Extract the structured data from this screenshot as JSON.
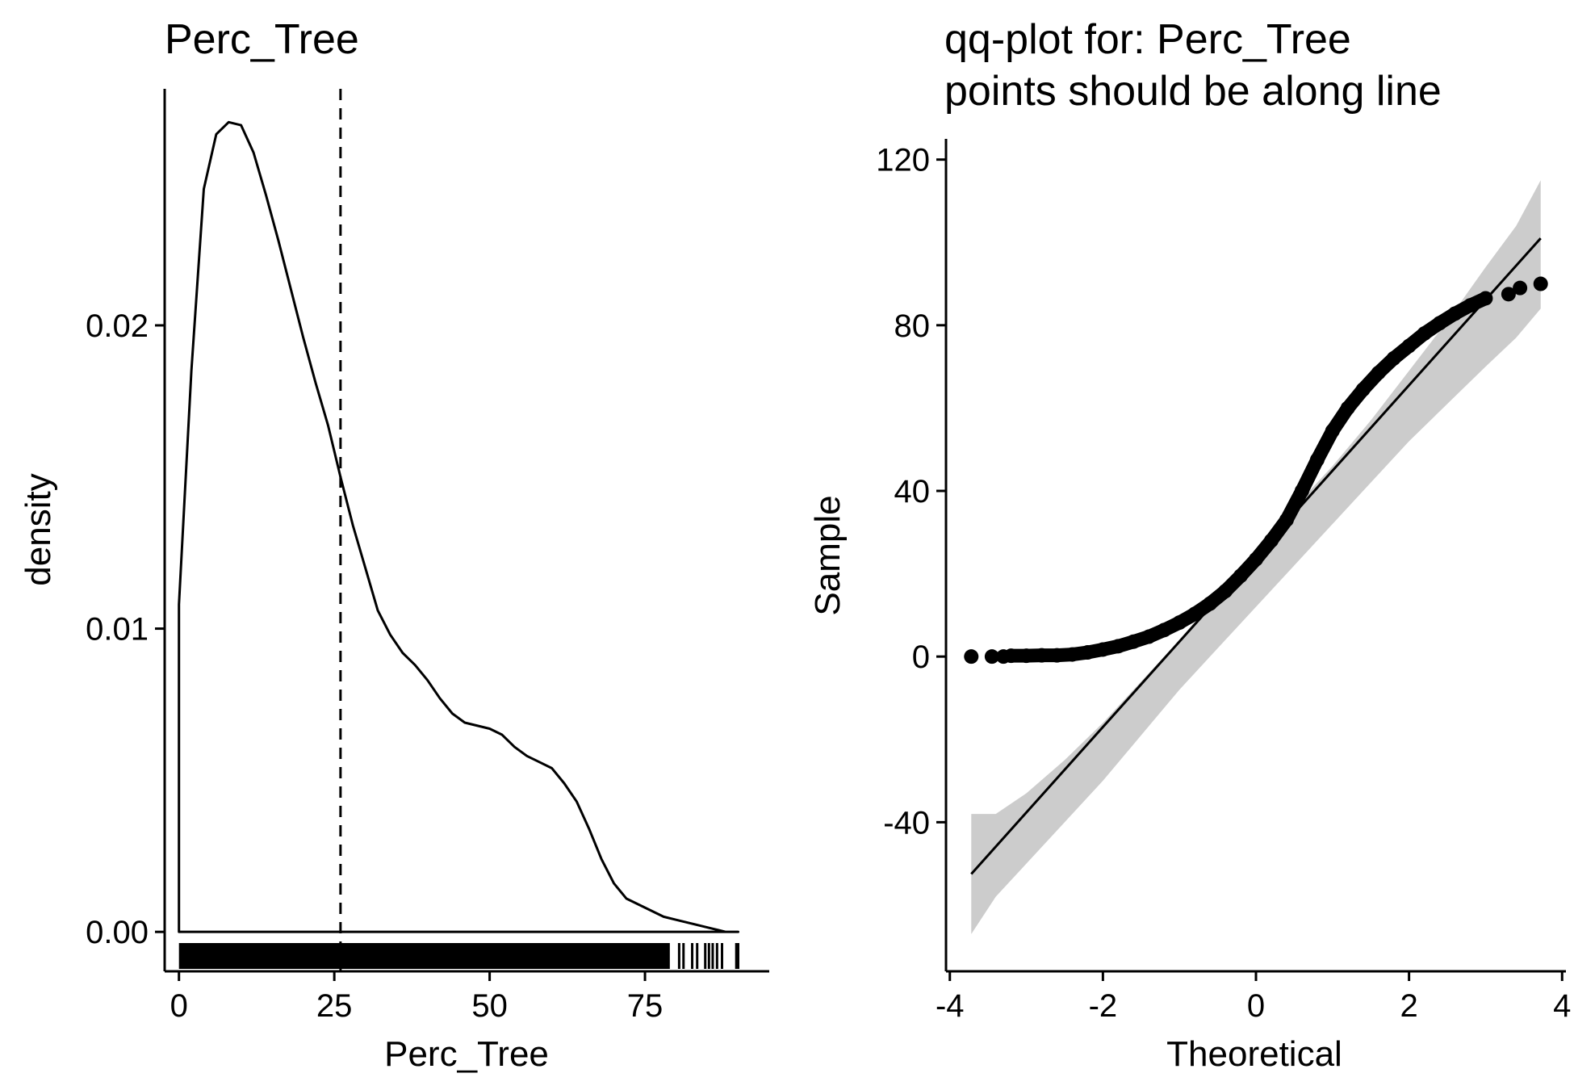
{
  "chart_data": [
    {
      "type": "area",
      "panel": "density",
      "title": "Perc_Tree",
      "xlabel": "Perc_Tree",
      "ylabel": "density",
      "xlim": [
        -2.3,
        95
      ],
      "ylim": [
        -0.0013,
        0.0278
      ],
      "x_ticks": [
        0,
        25,
        50,
        75
      ],
      "x_tick_labels": [
        "0",
        "25",
        "50",
        "75"
      ],
      "y_ticks": [
        0,
        0.01,
        0.02
      ],
      "y_tick_labels": [
        "0.00",
        "0.01",
        "0.02"
      ],
      "grid": false,
      "legend": "none",
      "mean_line_x": 26,
      "density_curve": {
        "x": [
          0,
          2,
          4,
          6,
          8,
          10,
          12,
          14,
          16,
          18,
          20,
          22,
          24,
          26,
          28,
          30,
          32,
          34,
          36,
          38,
          40,
          42,
          44,
          46,
          48,
          50,
          52,
          54,
          56,
          58,
          60,
          62,
          64,
          66,
          68,
          70,
          72,
          74,
          76,
          78,
          80,
          82,
          84,
          86,
          88,
          90
        ],
        "y": [
          0.0108,
          0.0185,
          0.0245,
          0.0263,
          0.0267,
          0.0266,
          0.0257,
          0.0243,
          0.0228,
          0.0212,
          0.0196,
          0.0181,
          0.0167,
          0.015,
          0.0134,
          0.012,
          0.0106,
          0.0098,
          0.0092,
          0.0088,
          0.0083,
          0.0077,
          0.0072,
          0.0069,
          0.0068,
          0.0067,
          0.0065,
          0.0061,
          0.0058,
          0.0056,
          0.0054,
          0.0049,
          0.0043,
          0.0034,
          0.0024,
          0.0016,
          0.0011,
          0.0009,
          0.0007,
          0.0005,
          0.0004,
          0.0003,
          0.0002,
          0.0001,
          0.0,
          0.0
        ]
      },
      "rug": {
        "dense_from": 0,
        "dense_to": 79,
        "sparse": [
          80.5,
          81.2,
          82.6,
          83.4,
          84.7,
          85.3,
          85.9,
          86.6,
          87.4,
          89.7,
          90.0
        ]
      }
    },
    {
      "type": "scatter",
      "panel": "qq",
      "title": "qq-plot for: Perc_Tree",
      "subtitle": "points should be along line",
      "xlabel": "Theoretical",
      "ylabel": "Sample",
      "xlim": [
        -4.05,
        4.05
      ],
      "ylim": [
        -76,
        125
      ],
      "x_ticks": [
        -4,
        -2,
        0,
        2,
        4
      ],
      "x_tick_labels": [
        "-4",
        "-2",
        "0",
        "2",
        "4"
      ],
      "y_ticks": [
        -40,
        0,
        40,
        80,
        120
      ],
      "y_tick_labels": [
        "-40",
        "0",
        "40",
        "80",
        "120"
      ],
      "grid": false,
      "legend": "none",
      "reference_line": {
        "x": [
          -3.72,
          3.72
        ],
        "y": [
          -52.5,
          101
        ]
      },
      "confidence_band": {
        "x": [
          -3.72,
          -3.4,
          -3,
          -2.5,
          -2,
          -1.5,
          -1,
          -0.5,
          0,
          0.5,
          1,
          1.5,
          2,
          2.5,
          3,
          3.4,
          3.72
        ],
        "lower": [
          -67,
          -58,
          -50,
          -40,
          -30,
          -19,
          -8,
          2,
          12,
          22,
          32,
          42,
          52,
          61,
          70,
          77,
          84
        ],
        "upper": [
          -38,
          -38,
          -33,
          -25,
          -16,
          -6,
          4,
          15,
          26,
          36,
          46,
          57,
          69,
          81,
          94,
          104,
          115
        ]
      },
      "points_curve": {
        "x": [
          -3.2,
          -3.0,
          -2.8,
          -2.6,
          -2.4,
          -2.2,
          -2.0,
          -1.8,
          -1.6,
          -1.4,
          -1.2,
          -1.0,
          -0.8,
          -0.6,
          -0.4,
          -0.2,
          0.0,
          0.2,
          0.4,
          0.6,
          0.8,
          1.0,
          1.2,
          1.4,
          1.6,
          1.8,
          2.0,
          2.2,
          2.4,
          2.6,
          2.8,
          3.0
        ],
        "y": [
          0.2,
          0.2,
          0.3,
          0.3,
          0.5,
          1.0,
          1.7,
          2.5,
          3.6,
          4.8,
          6.4,
          8.2,
          10.3,
          12.8,
          15.8,
          19.5,
          23.5,
          28.0,
          33.0,
          40.0,
          47.5,
          54.5,
          60.0,
          64.5,
          68.5,
          72.0,
          75.0,
          78.0,
          80.5,
          82.8,
          84.8,
          86.5
        ]
      },
      "extreme_points": [
        {
          "x": -3.72,
          "y": 0
        },
        {
          "x": -3.45,
          "y": 0
        },
        {
          "x": -3.3,
          "y": 0
        },
        {
          "x": 3.3,
          "y": 87.5
        },
        {
          "x": 3.45,
          "y": 89
        },
        {
          "x": 3.72,
          "y": 90
        }
      ]
    }
  ]
}
